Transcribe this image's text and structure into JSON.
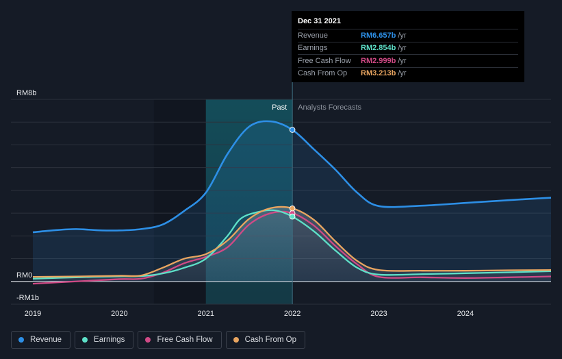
{
  "colors": {
    "background": "#151b26",
    "revenue": "#2d8fe6",
    "earnings": "#5ee0c8",
    "free_cash_flow": "#d04a86",
    "cash_from_op": "#e9a560",
    "past_highlight": "#14525f",
    "grid": "#2c323c"
  },
  "tooltip": {
    "date": "Dec 31 2021",
    "rows": [
      {
        "label": "Revenue",
        "value": "RM6.657b",
        "unit": "/yr",
        "color": "#2d8fe6"
      },
      {
        "label": "Earnings",
        "value": "RM2.854b",
        "unit": "/yr",
        "color": "#5ee0c8"
      },
      {
        "label": "Free Cash Flow",
        "value": "RM2.999b",
        "unit": "/yr",
        "color": "#d04a86"
      },
      {
        "label": "Cash From Op",
        "value": "RM3.213b",
        "unit": "/yr",
        "color": "#e9a560"
      }
    ]
  },
  "legend": [
    {
      "label": "Revenue",
      "icon": "legend-dot-icon",
      "color": "#2d8fe6"
    },
    {
      "label": "Earnings",
      "icon": "legend-dot-icon",
      "color": "#5ee0c8"
    },
    {
      "label": "Free Cash Flow",
      "icon": "legend-dot-icon",
      "color": "#d04a86"
    },
    {
      "label": "Cash From Op",
      "icon": "legend-dot-icon",
      "color": "#e9a560"
    }
  ],
  "chart_data": {
    "type": "line",
    "y_axis_labels": [
      {
        "label": "RM8b",
        "value": 8
      },
      {
        "label": "RM0",
        "value": 0
      },
      {
        "label": "-RM1b",
        "value": -1
      }
    ],
    "ylim": [
      -1,
      8
    ],
    "xlim": [
      2019,
      2024.99
    ],
    "x_ticks": [
      {
        "label": "2019",
        "value": 2019
      },
      {
        "label": "2020",
        "value": 2020
      },
      {
        "label": "2021",
        "value": 2021
      },
      {
        "label": "2022",
        "value": 2022
      },
      {
        "label": "2023",
        "value": 2023
      },
      {
        "label": "2024",
        "value": 2024
      }
    ],
    "past_label": "Past",
    "forecast_label": "Analysts Forecasts",
    "past_highlight_range": [
      2021.0,
      2022.0
    ],
    "divider_x": 2022.0,
    "series": [
      {
        "name": "Revenue",
        "key": "revenue",
        "points": [
          [
            2019.0,
            2.16
          ],
          [
            2019.25,
            2.25
          ],
          [
            2019.5,
            2.3
          ],
          [
            2019.75,
            2.25
          ],
          [
            2020.0,
            2.24
          ],
          [
            2020.25,
            2.3
          ],
          [
            2020.5,
            2.5
          ],
          [
            2020.75,
            3.1
          ],
          [
            2021.0,
            3.9
          ],
          [
            2021.25,
            5.6
          ],
          [
            2021.5,
            6.8
          ],
          [
            2021.75,
            7.03
          ],
          [
            2022.0,
            6.66
          ],
          [
            2022.25,
            5.8
          ],
          [
            2022.5,
            4.9
          ],
          [
            2022.75,
            3.9
          ],
          [
            2023.0,
            3.31
          ],
          [
            2023.5,
            3.33
          ],
          [
            2024.0,
            3.45
          ],
          [
            2024.5,
            3.57
          ],
          [
            2024.99,
            3.68
          ]
        ]
      },
      {
        "name": "Earnings",
        "key": "earnings",
        "points": [
          [
            2019.0,
            0.12
          ],
          [
            2019.5,
            0.18
          ],
          [
            2020.0,
            0.22
          ],
          [
            2020.25,
            0.23
          ],
          [
            2020.5,
            0.35
          ],
          [
            2020.75,
            0.6
          ],
          [
            2021.0,
            1.0
          ],
          [
            2021.25,
            2.0
          ],
          [
            2021.4,
            2.75
          ],
          [
            2021.6,
            3.05
          ],
          [
            2021.8,
            3.12
          ],
          [
            2022.0,
            2.85
          ],
          [
            2022.25,
            2.2
          ],
          [
            2022.5,
            1.35
          ],
          [
            2022.75,
            0.6
          ],
          [
            2023.0,
            0.3
          ],
          [
            2023.5,
            0.32
          ],
          [
            2024.0,
            0.36
          ],
          [
            2024.5,
            0.4
          ],
          [
            2024.99,
            0.45
          ]
        ]
      },
      {
        "name": "Free Cash Flow",
        "key": "free_cash_flow",
        "points": [
          [
            2019.0,
            -0.1
          ],
          [
            2019.5,
            0.0
          ],
          [
            2020.0,
            0.1
          ],
          [
            2020.25,
            0.12
          ],
          [
            2020.5,
            0.38
          ],
          [
            2020.75,
            0.8
          ],
          [
            2021.0,
            1.08
          ],
          [
            2021.25,
            1.5
          ],
          [
            2021.5,
            2.5
          ],
          [
            2021.75,
            3.0
          ],
          [
            2022.0,
            3.0
          ],
          [
            2022.25,
            2.45
          ],
          [
            2022.5,
            1.55
          ],
          [
            2022.75,
            0.75
          ],
          [
            2023.0,
            0.2
          ],
          [
            2023.5,
            0.18
          ],
          [
            2024.0,
            0.15
          ],
          [
            2024.5,
            0.18
          ],
          [
            2024.99,
            0.22
          ]
        ]
      },
      {
        "name": "Cash From Op",
        "key": "cash_from_op",
        "points": [
          [
            2019.0,
            0.2
          ],
          [
            2019.5,
            0.22
          ],
          [
            2020.0,
            0.25
          ],
          [
            2020.25,
            0.26
          ],
          [
            2020.5,
            0.6
          ],
          [
            2020.75,
            1.0
          ],
          [
            2021.0,
            1.2
          ],
          [
            2021.25,
            1.8
          ],
          [
            2021.5,
            2.75
          ],
          [
            2021.75,
            3.22
          ],
          [
            2022.0,
            3.21
          ],
          [
            2022.25,
            2.7
          ],
          [
            2022.5,
            1.75
          ],
          [
            2022.75,
            0.9
          ],
          [
            2023.0,
            0.5
          ],
          [
            2023.5,
            0.47
          ],
          [
            2024.0,
            0.47
          ],
          [
            2024.5,
            0.49
          ],
          [
            2024.99,
            0.5
          ]
        ]
      }
    ]
  }
}
